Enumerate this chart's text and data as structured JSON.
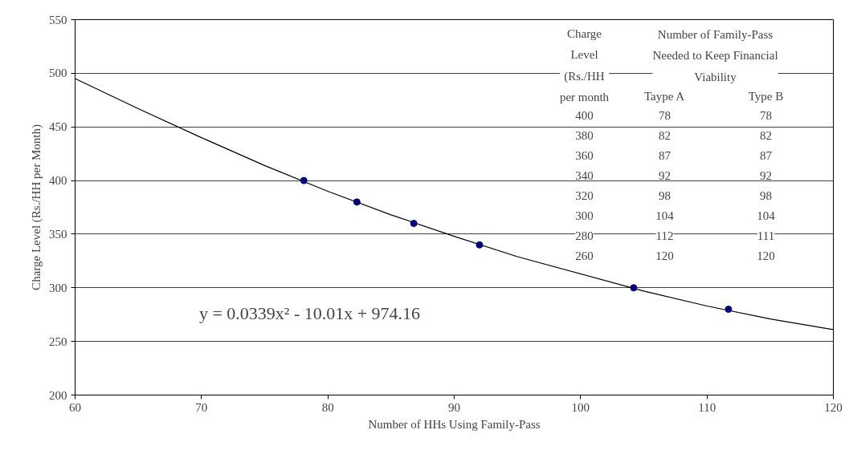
{
  "chart_data": {
    "type": "scatter",
    "xlabel": "Number of HHs Using Family-Pass",
    "ylabel": "Charge Level (Rs./HH per Month)",
    "xlim": [
      60,
      120
    ],
    "ylim": [
      200,
      550
    ],
    "xticks": [
      60,
      70,
      80,
      90,
      100,
      110,
      120
    ],
    "yticks": [
      200,
      250,
      300,
      350,
      400,
      450,
      500,
      550
    ],
    "grid": "y",
    "marker": "circle",
    "series": [
      {
        "type": "line",
        "color": "#000000",
        "marker": "none",
        "x": [
          60,
          65,
          70,
          75,
          80,
          85,
          90,
          95,
          105,
          110,
          115,
          120
        ],
        "values": [
          495,
          467,
          440,
          414,
          390,
          368,
          348,
          329,
          297,
          283,
          271,
          261
        ]
      },
      {
        "type": "scatter",
        "color": "#000080",
        "x": [
          78.1,
          82.3,
          86.8,
          92.0,
          104.2,
          111.7
        ],
        "values": [
          400,
          380,
          360,
          340,
          300,
          280
        ]
      }
    ],
    "annotations": [
      "y = 0.0339x² - 10.01x + 974.16",
      "Charge\nLevel\n(Rs./HH\nper month",
      "Number of Family-Pass\nNeeded to Keep Financial\nViability",
      "Taype A",
      "Type B",
      "400",
      "78",
      "78",
      "380",
      "82",
      "82",
      "360",
      "87",
      "87",
      "340",
      "92",
      "92",
      "320",
      "98",
      "98",
      "300",
      "104",
      "104",
      "280",
      "112",
      "111",
      "260",
      "120",
      "120"
    ]
  }
}
